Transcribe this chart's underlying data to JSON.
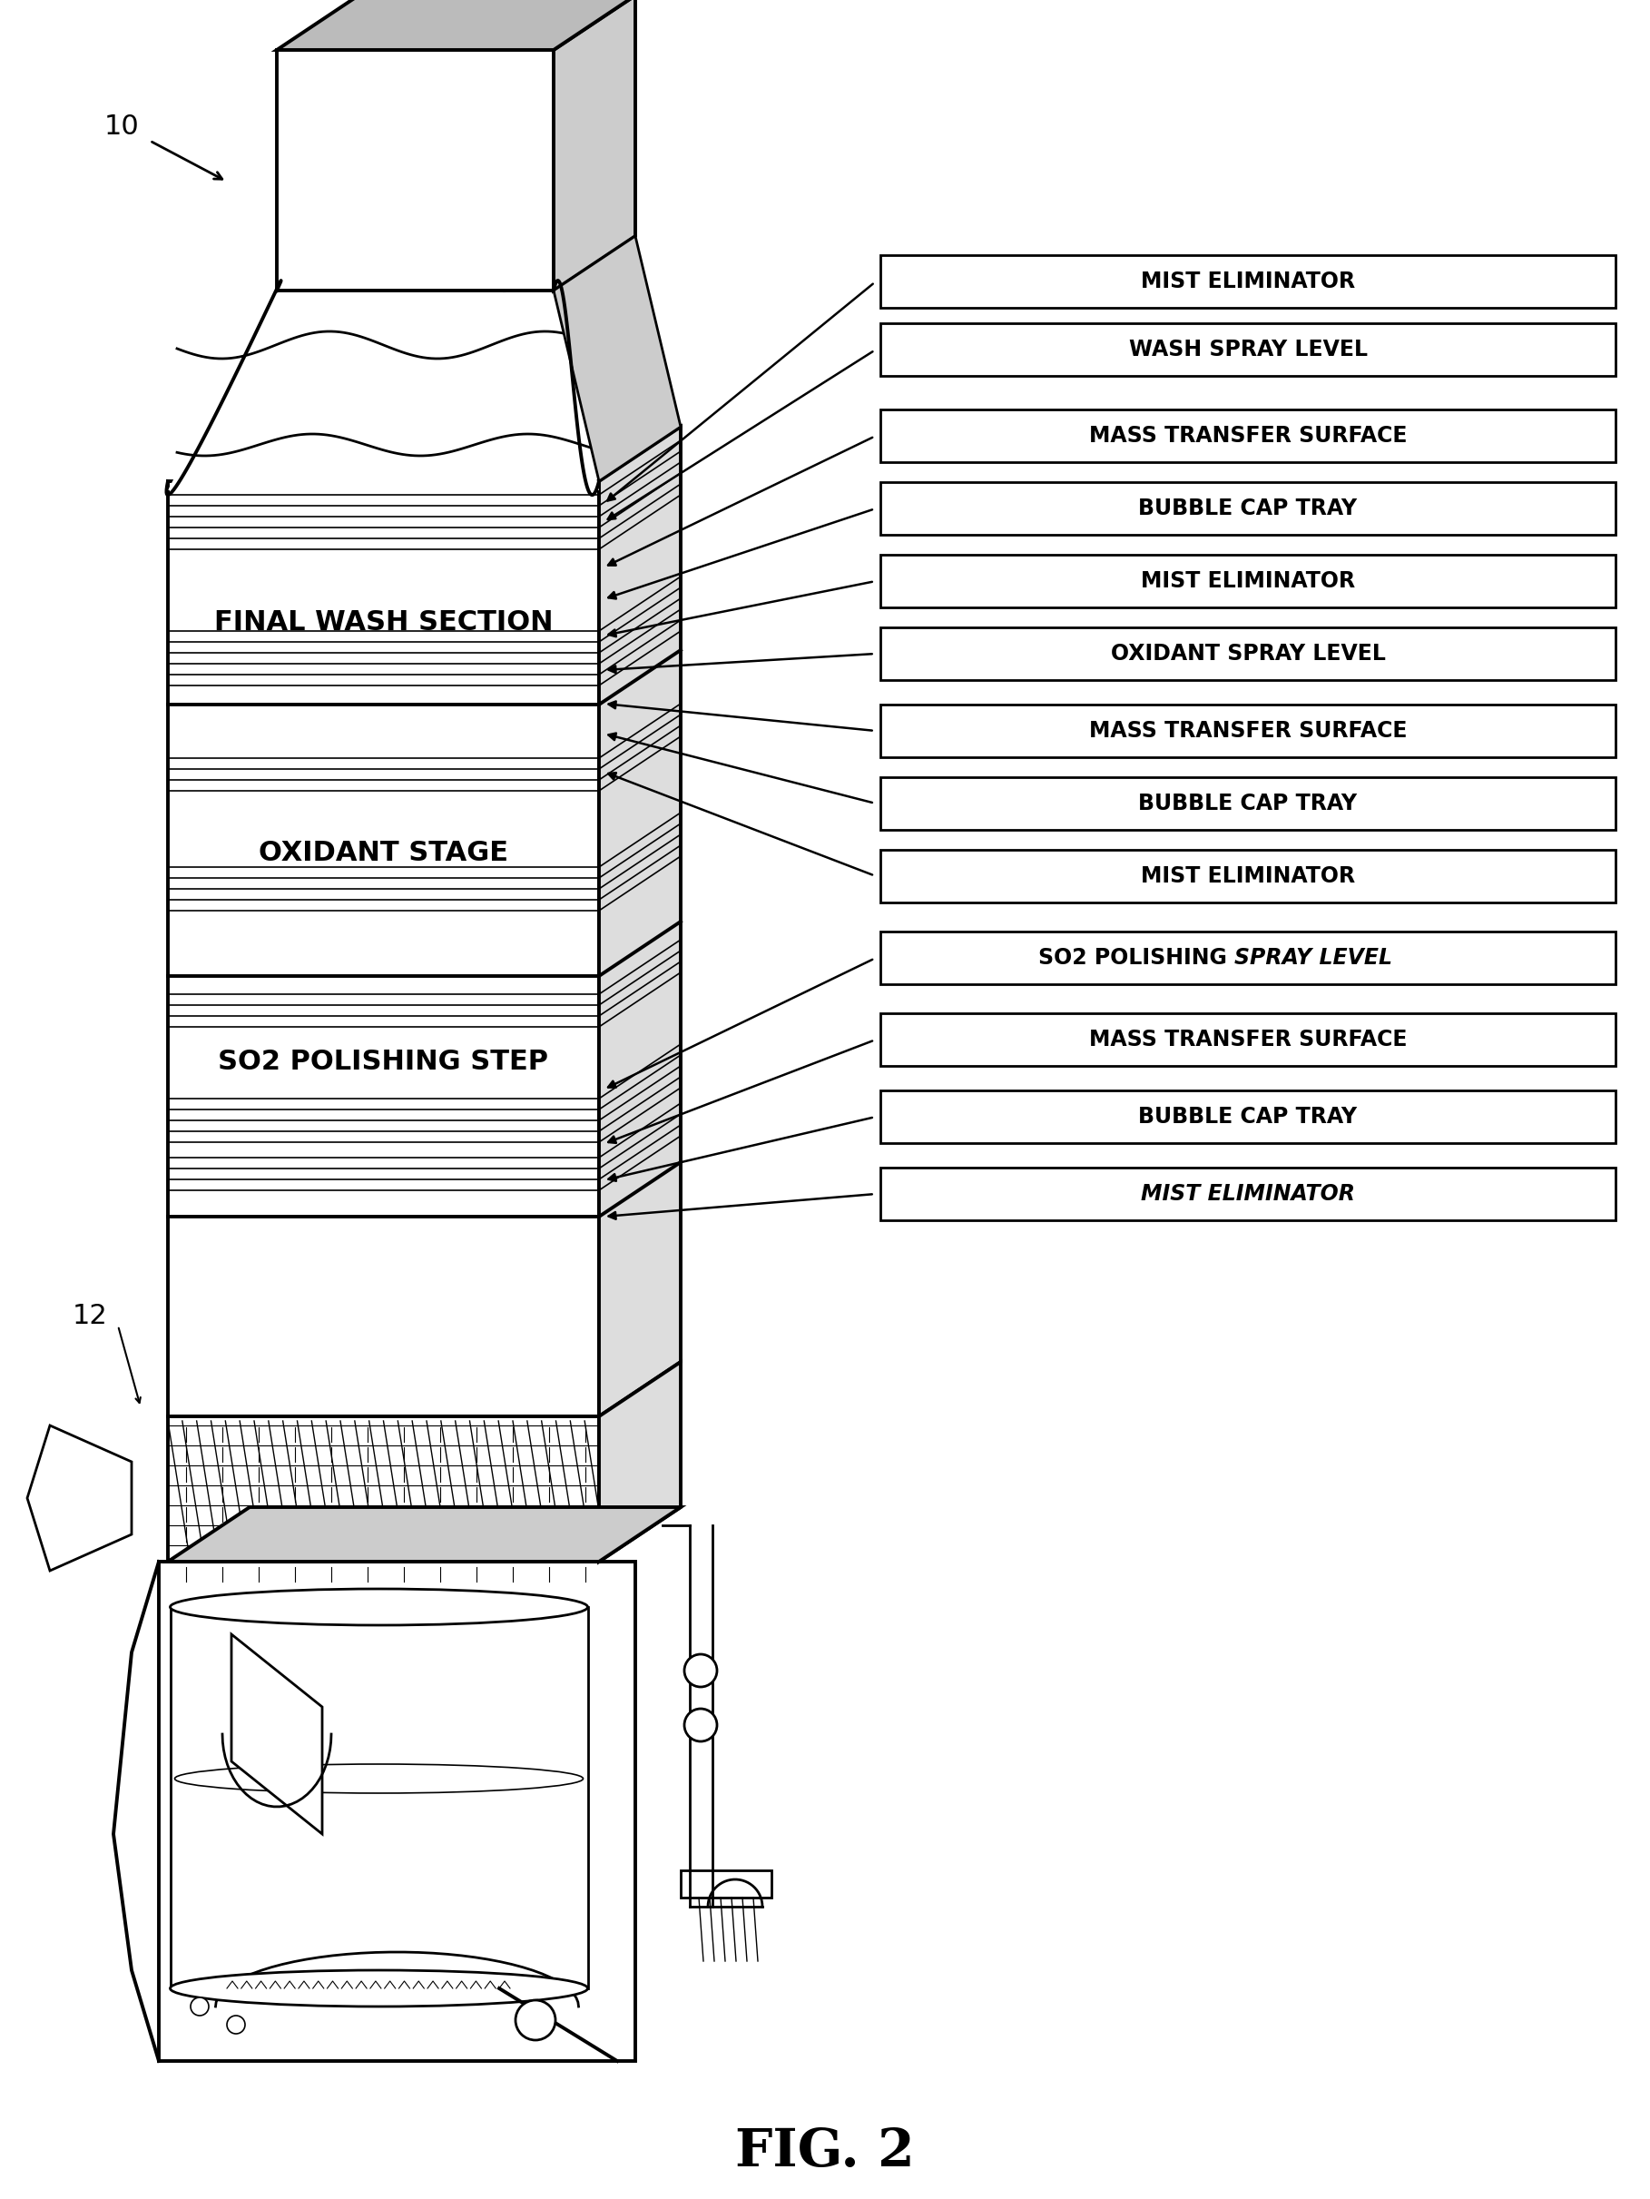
{
  "figure_label": "FIG. 2",
  "bg_color": "#ffffff",
  "line_color": "#000000",
  "labels": [
    {
      "text": "MIST ELIMINATOR",
      "italic": false
    },
    {
      "text": "WASH SPRAY LEVEL",
      "italic": false
    },
    {
      "text": "MASS TRANSFER SURFACE",
      "italic": false
    },
    {
      "text": "BUBBLE CAP TRAY",
      "italic": false
    },
    {
      "text": "MIST ELIMINATOR",
      "italic": false
    },
    {
      "text": "OXIDANT SPRAY LEVEL",
      "italic": false
    },
    {
      "text": "MASS TRANSFER SURFACE",
      "italic": false
    },
    {
      "text": "BUBBLE CAP TRAY",
      "italic": false
    },
    {
      "text": "MIST ELIMINATOR",
      "italic": false
    },
    {
      "text": "SO2 POLISHING SPRAY LEVEL",
      "italic": true
    },
    {
      "text": "MASS TRANSFER SURFACE",
      "italic": false
    },
    {
      "text": "BUBBLE CAP TRAY",
      "italic": false
    },
    {
      "text": "MIST ELIMINATOR",
      "italic": true
    }
  ],
  "section_labels": [
    {
      "text": "FINAL WASH SECTION"
    },
    {
      "text": "OXIDANT STAGE"
    },
    {
      "text": "SO2 POLISHING STEP"
    }
  ]
}
